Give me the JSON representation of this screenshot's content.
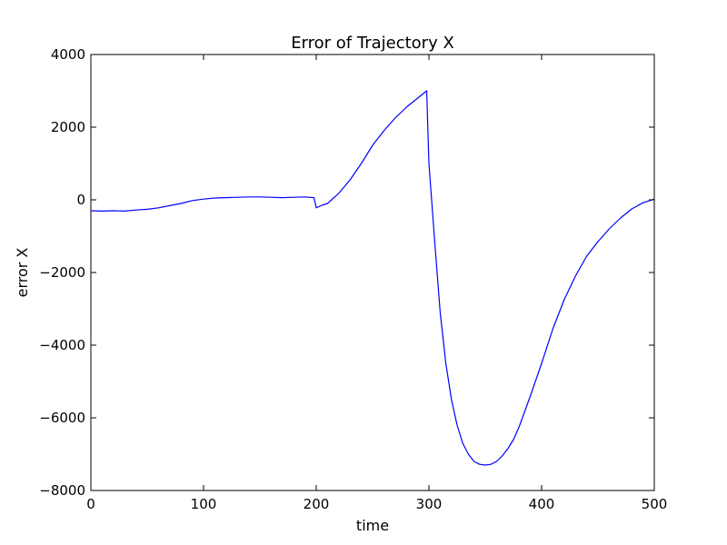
{
  "chart_data": {
    "type": "line",
    "title": "Error of Trajectory X",
    "xlabel": "time",
    "ylabel": "error X",
    "xlim": [
      0,
      500
    ],
    "ylim": [
      -8000,
      4000
    ],
    "x_ticks": [
      0,
      100,
      200,
      300,
      400,
      500
    ],
    "x_tick_labels": [
      "0",
      "100",
      "200",
      "300",
      "400",
      "500"
    ],
    "y_ticks": [
      -8000,
      -6000,
      -4000,
      -2000,
      0,
      2000,
      4000
    ],
    "y_tick_labels": [
      "−8000",
      "−6000",
      "−4000",
      "−2000",
      "0",
      "2000",
      "4000"
    ],
    "grid": false,
    "colors": {
      "series": "#0000ff",
      "axes": "#000000",
      "background": "#ffffff"
    },
    "series": [
      {
        "x": [
          0,
          10,
          20,
          30,
          40,
          50,
          60,
          70,
          80,
          90,
          100,
          110,
          120,
          130,
          140,
          150,
          160,
          170,
          180,
          190,
          198,
          200,
          205,
          210,
          220,
          230,
          240,
          250,
          260,
          270,
          280,
          290,
          298,
          300,
          305,
          310,
          315,
          320,
          325,
          330,
          335,
          340,
          345,
          350,
          355,
          360,
          365,
          370,
          375,
          380,
          390,
          400,
          410,
          420,
          430,
          440,
          450,
          460,
          470,
          480,
          490,
          500
        ],
        "y": [
          -300,
          -310,
          -300,
          -310,
          -280,
          -260,
          -220,
          -160,
          -100,
          -20,
          20,
          50,
          60,
          70,
          80,
          80,
          70,
          60,
          70,
          80,
          60,
          -220,
          -150,
          -100,
          180,
          550,
          1000,
          1500,
          1900,
          2250,
          2550,
          2800,
          3000,
          1000,
          -1100,
          -3100,
          -4500,
          -5500,
          -6200,
          -6700,
          -7000,
          -7200,
          -7280,
          -7300,
          -7280,
          -7200,
          -7050,
          -6850,
          -6600,
          -6250,
          -5400,
          -4500,
          -3550,
          -2750,
          -2100,
          -1550,
          -1150,
          -800,
          -500,
          -250,
          -80,
          20
        ]
      }
    ]
  }
}
